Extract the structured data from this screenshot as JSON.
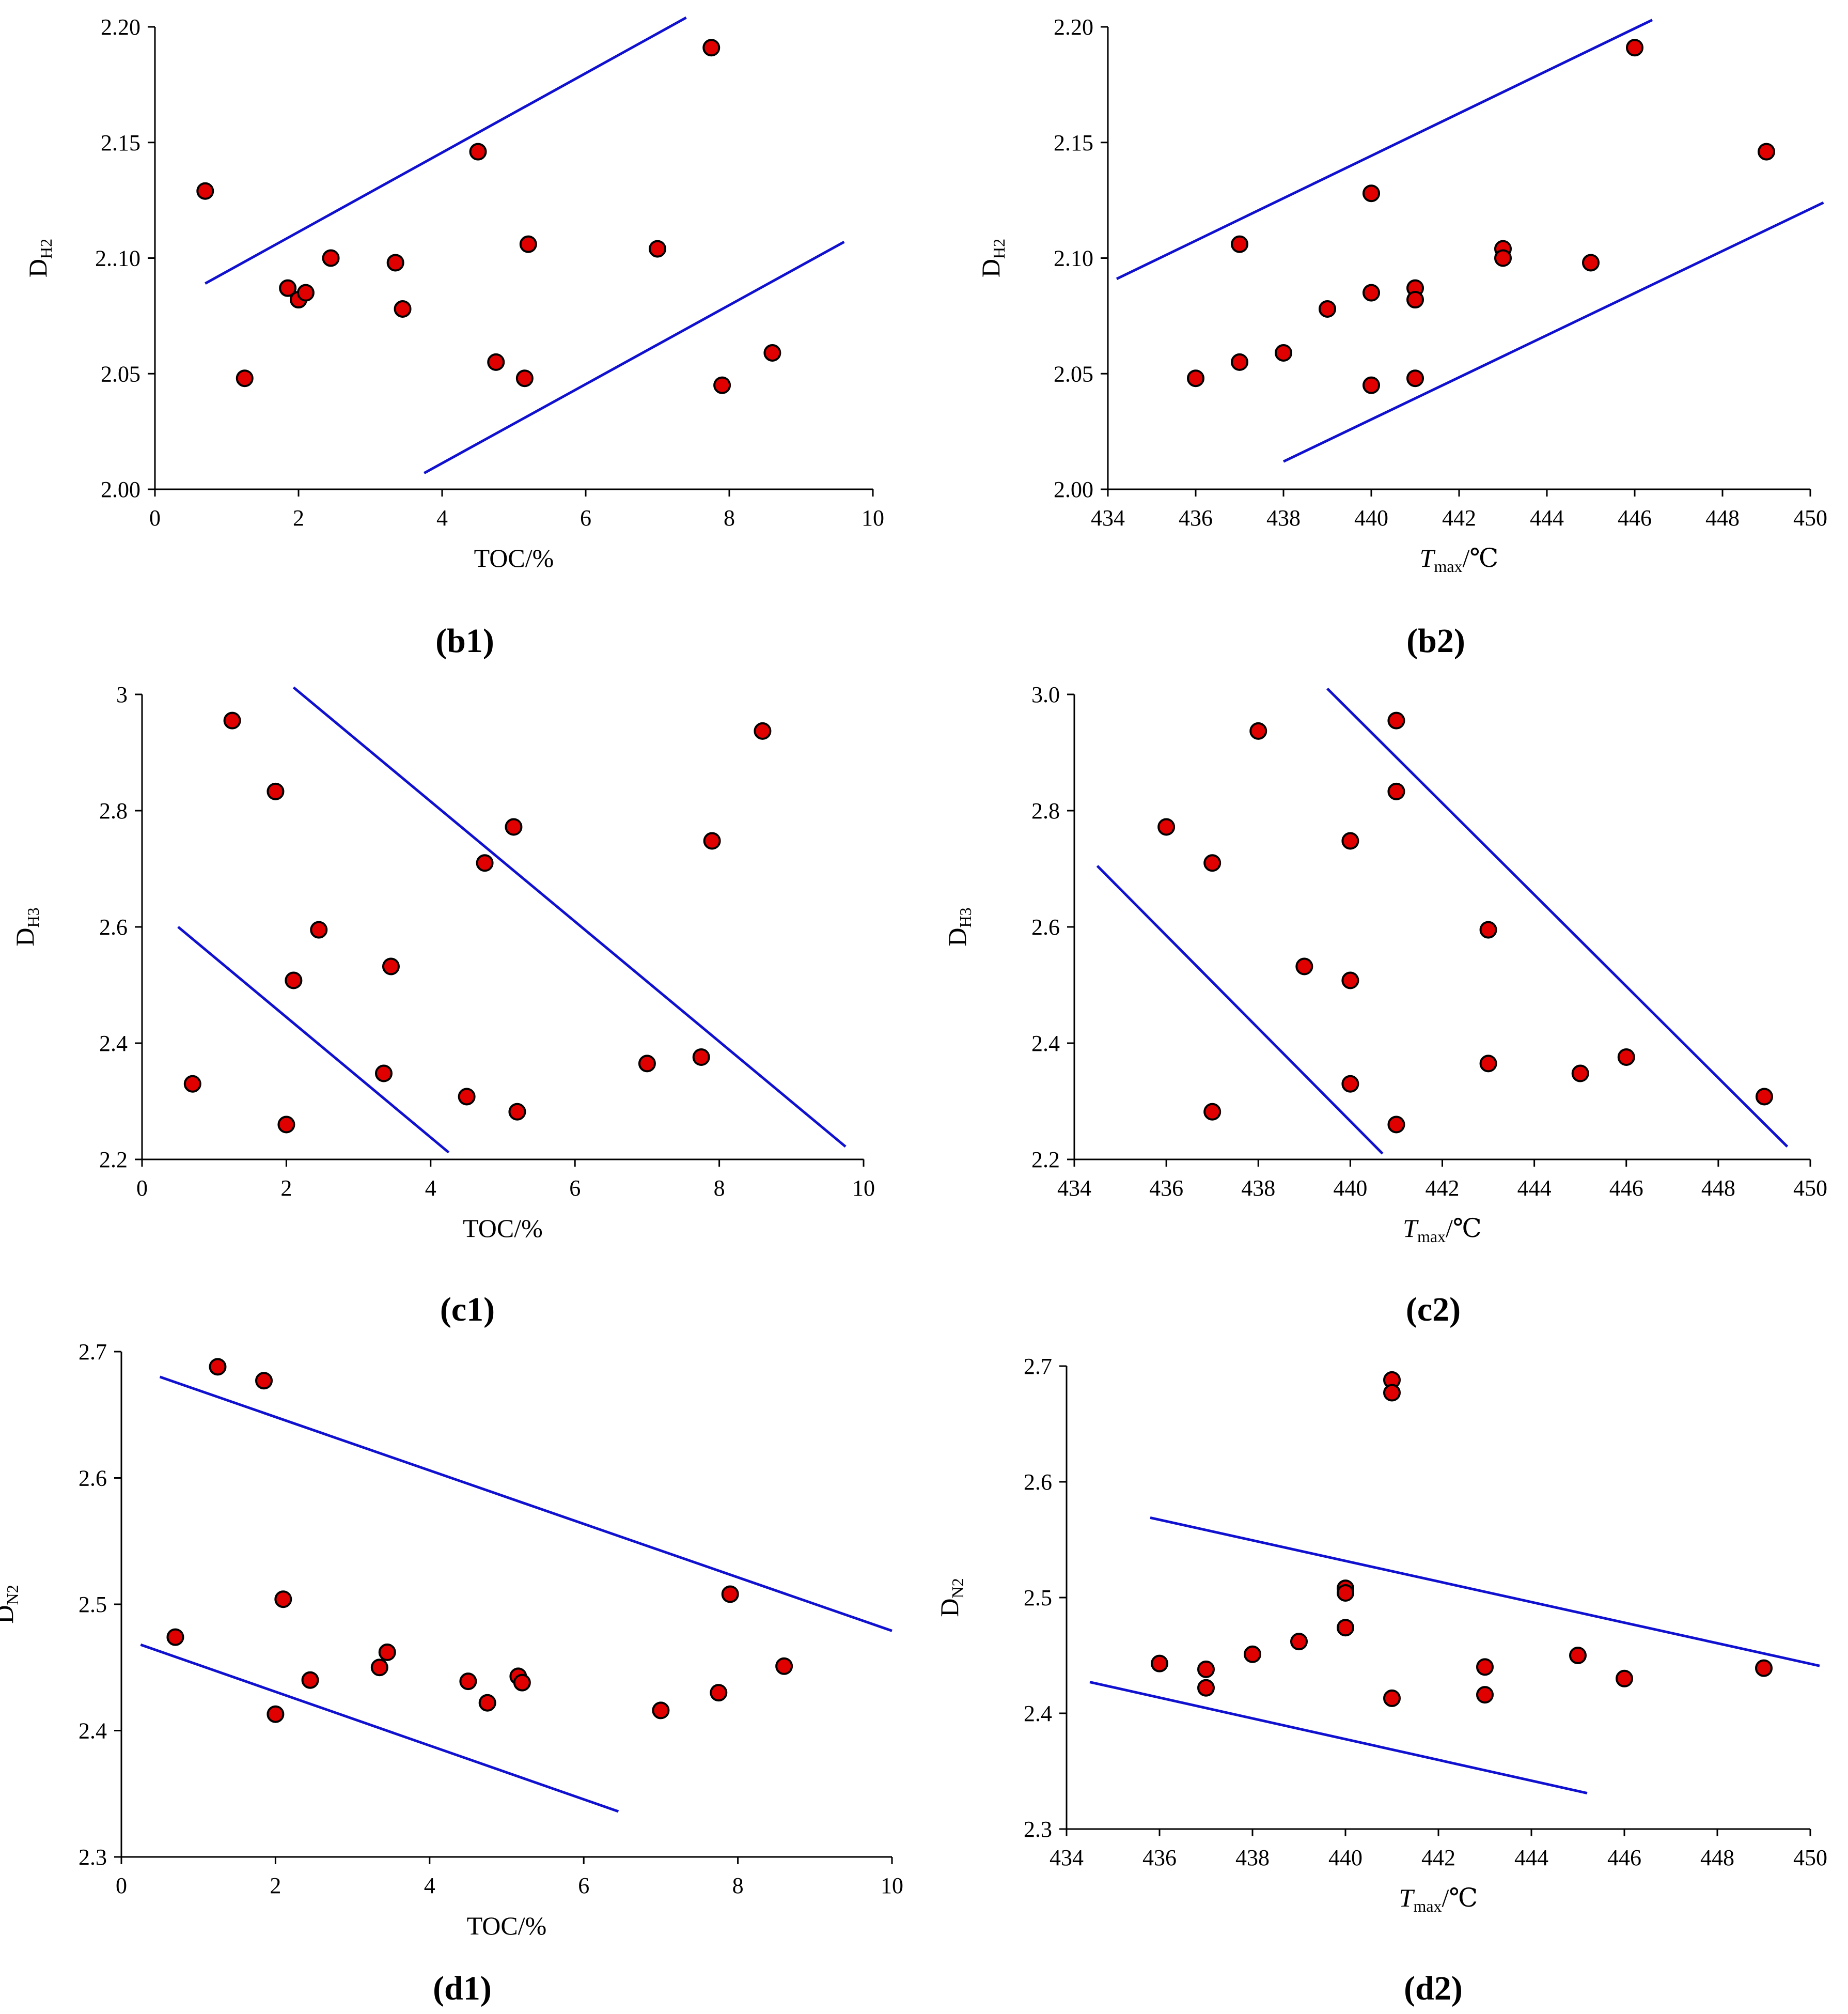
{
  "colors": {
    "point": "#e00000",
    "trend": "#1010d0",
    "axis": "#000000"
  },
  "chart_data": [
    {
      "type": "scatter",
      "panel_label": "(b1)",
      "xlabel": "TOC/%",
      "ylabel_main": "D",
      "ylabel_sub": "H2",
      "xlim": [
        0,
        10
      ],
      "ylim": [
        2.0,
        2.2
      ],
      "x_ticks": [
        0,
        2,
        4,
        6,
        8,
        10
      ],
      "x_tick_labels": [
        "0",
        "2",
        "4",
        "6",
        "8",
        "10"
      ],
      "y_ticks": [
        2.0,
        2.05,
        2.1,
        2.15,
        2.2
      ],
      "y_tick_labels": [
        "2.00",
        "2.05",
        "2..10",
        "2.15",
        "2.20"
      ],
      "points": [
        [
          0.7,
          2.129
        ],
        [
          1.25,
          2.048
        ],
        [
          1.85,
          2.087
        ],
        [
          2.0,
          2.082
        ],
        [
          2.1,
          2.085
        ],
        [
          2.45,
          2.1
        ],
        [
          3.35,
          2.098
        ],
        [
          3.45,
          2.078
        ],
        [
          4.5,
          2.146
        ],
        [
          4.75,
          2.055
        ],
        [
          5.15,
          2.048
        ],
        [
          5.2,
          2.106
        ],
        [
          7.0,
          2.104
        ],
        [
          7.75,
          2.191
        ],
        [
          7.9,
          2.045
        ],
        [
          8.6,
          2.059
        ]
      ],
      "trend_lines": [
        [
          [
            0.7,
            2.089
          ],
          [
            7.4,
            2.204
          ]
        ],
        [
          [
            3.75,
            2.007
          ],
          [
            9.6,
            2.107
          ]
        ]
      ]
    },
    {
      "type": "scatter",
      "panel_label": "(b2)",
      "xlabel_main": "T",
      "xlabel_sub": "max",
      "xlabel_suffix": "/℃",
      "ylabel_main": "D",
      "ylabel_sub": "H2",
      "xlim": [
        434,
        450
      ],
      "ylim": [
        2.0,
        2.2
      ],
      "x_ticks": [
        434,
        436,
        438,
        440,
        442,
        444,
        446,
        448,
        450
      ],
      "x_tick_labels": [
        "434",
        "436",
        "438",
        "440",
        "442",
        "444",
        "446",
        "448",
        "450"
      ],
      "y_ticks": [
        2.0,
        2.05,
        2.1,
        2.15,
        2.2
      ],
      "y_tick_labels": [
        "2.00",
        "2.05",
        "2.10",
        "2.15",
        "2.20"
      ],
      "points": [
        [
          436,
          2.048
        ],
        [
          437,
          2.106
        ],
        [
          437,
          2.055
        ],
        [
          438,
          2.059
        ],
        [
          439,
          2.078
        ],
        [
          440,
          2.128
        ],
        [
          440,
          2.085
        ],
        [
          440,
          2.045
        ],
        [
          441,
          2.087
        ],
        [
          441,
          2.082
        ],
        [
          441,
          2.048
        ],
        [
          443,
          2.104
        ],
        [
          443,
          2.1
        ],
        [
          445,
          2.098
        ],
        [
          446,
          2.191
        ],
        [
          449,
          2.146
        ]
      ],
      "trend_lines": [
        [
          [
            434.2,
            2.091
          ],
          [
            446.4,
            2.203
          ]
        ],
        [
          [
            438,
            2.012
          ],
          [
            450.3,
            2.124
          ]
        ]
      ]
    },
    {
      "type": "scatter",
      "panel_label": "(c1)",
      "xlabel": "TOC/%",
      "ylabel_main": "D",
      "ylabel_sub": "H3",
      "xlim": [
        0,
        10
      ],
      "ylim": [
        2.2,
        3.0
      ],
      "x_ticks": [
        0,
        2,
        4,
        6,
        8,
        10
      ],
      "x_tick_labels": [
        "0",
        "2",
        "4",
        "6",
        "8",
        "10"
      ],
      "y_ticks": [
        2.2,
        2.4,
        2.6,
        2.8,
        3.0
      ],
      "y_tick_labels": [
        "2.2",
        "2.4",
        "2.6",
        "2.8",
        "3"
      ],
      "points": [
        [
          0.7,
          2.33
        ],
        [
          1.25,
          2.955
        ],
        [
          1.85,
          2.833
        ],
        [
          2.0,
          2.26
        ],
        [
          2.1,
          2.508
        ],
        [
          2.45,
          2.595
        ],
        [
          3.35,
          2.348
        ],
        [
          3.45,
          2.532
        ],
        [
          4.5,
          2.308
        ],
        [
          4.75,
          2.71
        ],
        [
          5.15,
          2.772
        ],
        [
          5.2,
          2.282
        ],
        [
          7.0,
          2.365
        ],
        [
          7.75,
          2.376
        ],
        [
          7.9,
          2.748
        ],
        [
          8.6,
          2.937
        ]
      ],
      "trend_lines": [
        [
          [
            0.5,
            2.6
          ],
          [
            4.25,
            2.212
          ]
        ],
        [
          [
            2.1,
            3.012
          ],
          [
            9.75,
            2.222
          ]
        ]
      ]
    },
    {
      "type": "scatter",
      "panel_label": "(c2)",
      "xlabel_main": "T",
      "xlabel_sub": "max",
      "xlabel_suffix": "/℃",
      "ylabel_main": "D",
      "ylabel_sub": "H3",
      "xlim": [
        434,
        450
      ],
      "ylim": [
        2.2,
        3.0
      ],
      "x_ticks": [
        434,
        436,
        438,
        440,
        442,
        444,
        446,
        448,
        450
      ],
      "x_tick_labels": [
        "434",
        "436",
        "438",
        "440",
        "442",
        "444",
        "446",
        "448",
        "450"
      ],
      "y_ticks": [
        2.2,
        2.4,
        2.6,
        2.8,
        3.0
      ],
      "y_tick_labels": [
        "2.2",
        "2.4",
        "2.6",
        "2.8",
        "3.0"
      ],
      "points": [
        [
          436,
          2.772
        ],
        [
          437,
          2.71
        ],
        [
          437,
          2.282
        ],
        [
          438,
          2.937
        ],
        [
          439,
          2.532
        ],
        [
          440,
          2.748
        ],
        [
          440,
          2.508
        ],
        [
          440,
          2.33
        ],
        [
          441,
          2.955
        ],
        [
          441,
          2.833
        ],
        [
          441,
          2.26
        ],
        [
          443,
          2.595
        ],
        [
          443,
          2.365
        ],
        [
          445,
          2.348
        ],
        [
          446,
          2.376
        ],
        [
          449,
          2.308
        ]
      ],
      "trend_lines": [
        [
          [
            434.5,
            2.705
          ],
          [
            440.7,
            2.21
          ]
        ],
        [
          [
            439.5,
            3.01
          ],
          [
            449.5,
            2.222
          ]
        ]
      ]
    },
    {
      "type": "scatter",
      "panel_label": "(d1)",
      "xlabel": "TOC/%",
      "ylabel_main": "D",
      "ylabel_sub": "N2",
      "xlim": [
        0,
        10
      ],
      "ylim": [
        2.3,
        2.7
      ],
      "x_ticks": [
        0,
        2,
        4,
        6,
        8,
        10
      ],
      "x_tick_labels": [
        "0",
        "2",
        "4",
        "6",
        "8",
        "10"
      ],
      "y_ticks": [
        2.3,
        2.4,
        2.5,
        2.6,
        2.7
      ],
      "y_tick_labels": [
        "2.3",
        "2.4",
        "2.5",
        "2.6",
        "2.7"
      ],
      "points": [
        [
          0.7,
          2.474
        ],
        [
          1.25,
          2.688
        ],
        [
          1.85,
          2.677
        ],
        [
          2.0,
          2.413
        ],
        [
          2.1,
          2.504
        ],
        [
          2.45,
          2.44
        ],
        [
          3.35,
          2.45
        ],
        [
          3.45,
          2.462
        ],
        [
          4.5,
          2.439
        ],
        [
          4.75,
          2.422
        ],
        [
          5.15,
          2.443
        ],
        [
          5.2,
          2.438
        ],
        [
          7.0,
          2.416
        ],
        [
          7.75,
          2.43
        ],
        [
          7.9,
          2.508
        ],
        [
          8.6,
          2.451
        ]
      ],
      "trend_lines": [
        [
          [
            0.5,
            2.68
          ],
          [
            10.0,
            2.479
          ]
        ],
        [
          [
            0.25,
            2.468
          ],
          [
            6.45,
            2.336
          ]
        ]
      ]
    },
    {
      "type": "scatter",
      "panel_label": "(d2)",
      "xlabel_main": "T",
      "xlabel_sub": "max",
      "xlabel_suffix": "/℃",
      "ylabel_main": "D",
      "ylabel_sub": "N2",
      "xlim": [
        434,
        450
      ],
      "ylim": [
        2.3,
        2.7
      ],
      "x_ticks": [
        434,
        436,
        438,
        440,
        442,
        444,
        446,
        448,
        450
      ],
      "x_tick_labels": [
        "434",
        "436",
        "438",
        "440",
        "442",
        "444",
        "446",
        "448",
        "450"
      ],
      "y_ticks": [
        2.3,
        2.4,
        2.5,
        2.6,
        2.7
      ],
      "y_tick_labels": [
        "2.3",
        "2.4",
        "2.5",
        "2.6",
        "2.7"
      ],
      "points": [
        [
          436,
          2.443
        ],
        [
          437,
          2.438
        ],
        [
          437,
          2.422
        ],
        [
          438,
          2.451
        ],
        [
          439,
          2.462
        ],
        [
          440,
          2.508
        ],
        [
          440,
          2.504
        ],
        [
          440,
          2.474
        ],
        [
          441,
          2.688
        ],
        [
          441,
          2.677
        ],
        [
          441,
          2.413
        ],
        [
          443,
          2.44
        ],
        [
          443,
          2.416
        ],
        [
          445,
          2.45
        ],
        [
          446,
          2.43
        ],
        [
          449,
          2.439
        ]
      ],
      "trend_lines": [
        [
          [
            435.8,
            2.569
          ],
          [
            450.2,
            2.441
          ]
        ],
        [
          [
            434.5,
            2.427
          ],
          [
            445.2,
            2.331
          ]
        ]
      ]
    }
  ]
}
